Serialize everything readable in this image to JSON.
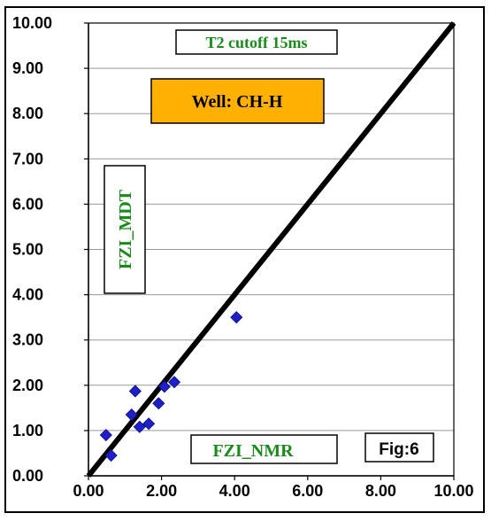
{
  "chart_data": {
    "type": "scatter",
    "title": "",
    "xlabel": "FZI_NMR",
    "ylabel": "FZI_MDT",
    "xlim": [
      0,
      10
    ],
    "ylim": [
      0,
      10
    ],
    "x_ticks": [
      "0.00",
      "2.00",
      "4.00",
      "6.00",
      "8.00",
      "10.00"
    ],
    "y_ticks": [
      "0.00",
      "1.00",
      "2.00",
      "3.00",
      "4.00",
      "5.00",
      "6.00",
      "7.00",
      "8.00",
      "9.00",
      "10.00"
    ],
    "grid": "horizontal",
    "reference_line": {
      "from": [
        0,
        0
      ],
      "to": [
        10,
        10
      ]
    },
    "series": [
      {
        "marker": "diamond",
        "color": "#1f1fc8",
        "points": [
          {
            "x": 0.48,
            "y": 0.9
          },
          {
            "x": 0.62,
            "y": 0.45
          },
          {
            "x": 1.18,
            "y": 1.35
          },
          {
            "x": 1.28,
            "y": 1.87
          },
          {
            "x": 1.4,
            "y": 1.08
          },
          {
            "x": 1.65,
            "y": 1.15
          },
          {
            "x": 1.92,
            "y": 1.6
          },
          {
            "x": 2.08,
            "y": 1.97
          },
          {
            "x": 2.35,
            "y": 2.07
          },
          {
            "x": 4.05,
            "y": 3.5
          }
        ]
      }
    ],
    "annotations": {
      "cutoff": "T2 cutoff 15ms",
      "well": "Well: CH-H",
      "fig": "Fig:6"
    },
    "colors": {
      "annotation_green": "#1a8a1a",
      "well_fill": "#ffb000",
      "marker": "#1f1fc8",
      "line": "#000000"
    }
  }
}
